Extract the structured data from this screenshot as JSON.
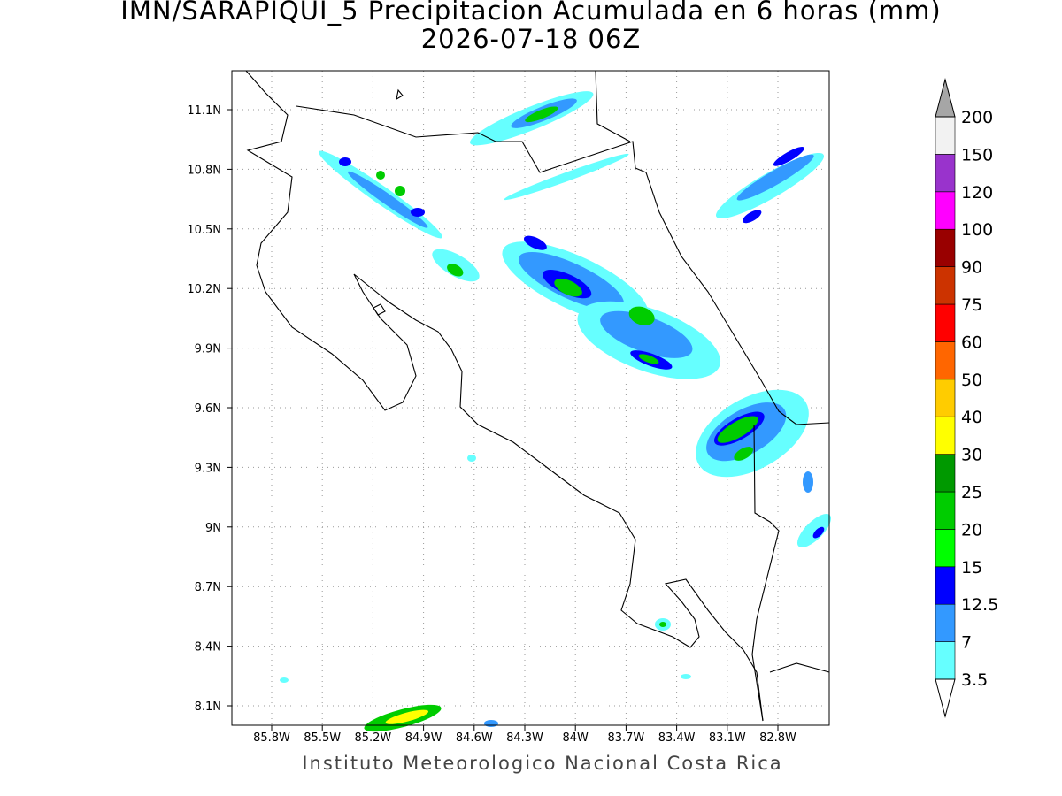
{
  "map": {
    "title": "IMN/SARAPIQUI_5 Precipitacion Acumulada en 6 horas (mm)",
    "subtitle": "2026-07-18 06Z",
    "footer": "Instituto Meteorologico Nacional Costa Rica",
    "lon_labels": [
      "85.8W",
      "85.5W",
      "85.2W",
      "84.9W",
      "84.6W",
      "84.3W",
      "84W",
      "83.7W",
      "83.4W",
      "83.1W",
      "82.8W"
    ],
    "lat_labels": [
      "11.1N",
      "10.8N",
      "10.5N",
      "10.2N",
      "9.9N",
      "9.6N",
      "9.3N",
      "9N",
      "8.7N",
      "8.4N",
      "8.1N"
    ],
    "colorbar": {
      "levels": [
        3.5,
        7,
        12.5,
        15,
        20,
        25,
        30,
        40,
        50,
        60,
        75,
        90,
        100,
        120,
        150,
        200
      ],
      "colors": [
        "#66ffff",
        "#3399ff",
        "#0000ff",
        "#00ff00",
        "#00cc00",
        "#009900",
        "#ffff00",
        "#ffcc00",
        "#ff6600",
        "#ff0000",
        "#cc3300",
        "#990000",
        "#ff00ff",
        "#9933cc",
        "#f2f2f2"
      ],
      "under_color": "#ffffff",
      "over_color": "#a6a6a6"
    }
  }
}
